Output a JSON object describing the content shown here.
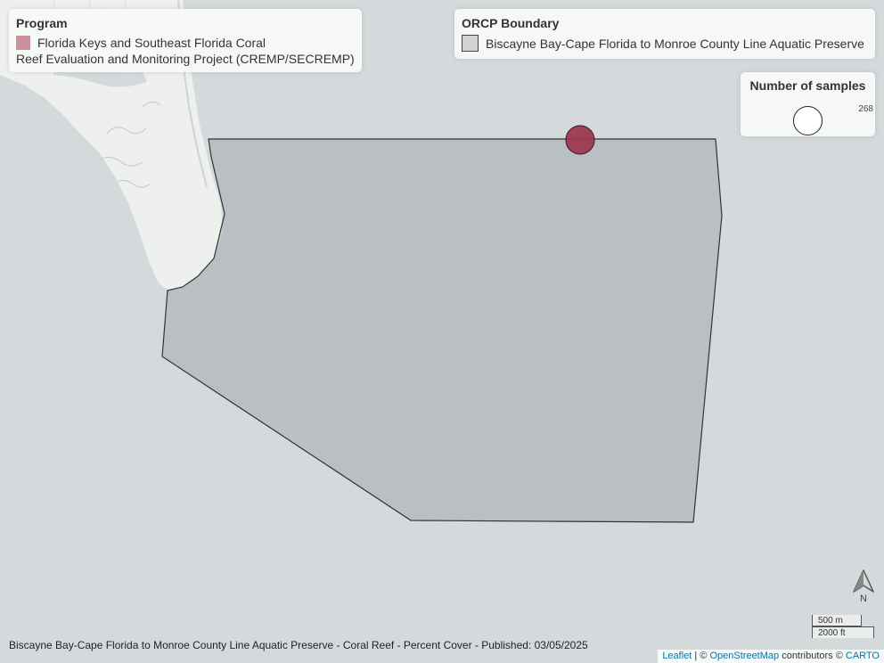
{
  "program_legend": {
    "title": "Program",
    "item_line1": "Florida Keys and Southeast Florida Coral",
    "item_line2": "Reef Evaluation and Monitoring Project (CREMP/SECREMP)",
    "swatch_color": "#c9919e"
  },
  "orcp_legend": {
    "title": "ORCP Boundary",
    "item": "Biscayne Bay-Cape Florida to Monroe County Line Aquatic Preserve"
  },
  "samples_legend": {
    "title": "Number of samples",
    "count": "268"
  },
  "marker": {
    "color": "#9b3a52",
    "samples": 268
  },
  "north_arrow": {
    "label": "N"
  },
  "scale": {
    "metric": "500 m",
    "imperial": "2000 ft"
  },
  "caption": "Biscayne Bay-Cape Florida to Monroe County Line Aquatic Preserve - Coral Reef - Percent Cover - Published: 03/05/2025",
  "attribution": {
    "leaflet": "Leaflet",
    "sep": " | © ",
    "osm": "OpenStreetMap",
    "contrib": " contributors © ",
    "carto": "CARTO"
  }
}
